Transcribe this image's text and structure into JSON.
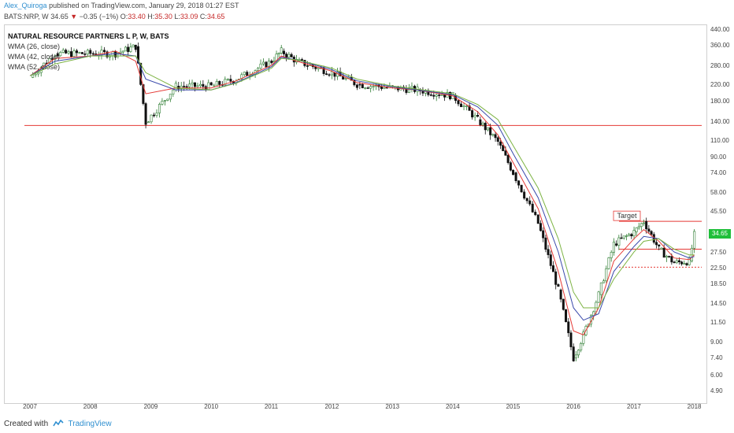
{
  "header": {
    "author": "Alex_Quiroga",
    "published_text": "published on TradingView.com, January 29, 2018 01:27 EST"
  },
  "quote": {
    "symbol": "BATS:NRP, W",
    "last": "34.65",
    "change": "−0.35 (−1%)",
    "open_label": "O:",
    "open": "33.40",
    "high_label": "H:",
    "high": "35.30",
    "low_label": "L:",
    "low": "33.09",
    "close_label": "C:",
    "close": "34.65",
    "down_arrow": "▼"
  },
  "legend": {
    "title": "NATURAL RESOURCE PARTNERS L P, W, BATS",
    "items": [
      "WMA (26, close)",
      "WMA (42, close)",
      "WMA (52, close)"
    ]
  },
  "price_tag": "34.65",
  "annotation": {
    "target_label": "Target"
  },
  "colors": {
    "up_candle": "#2e7d32",
    "down_candle": "#111111",
    "wma26": "#e53935",
    "wma42": "#3949ab",
    "wma52": "#7cb342",
    "hline": "#e53935",
    "price_tag": "#1fbf3a",
    "author": "#2f8fd0"
  },
  "chart_data": {
    "type": "line",
    "title": "NATURAL RESOURCE PARTNERS L P, W, BATS",
    "scale": "log",
    "x": [
      "2007-01",
      "2007-06",
      "2008-01",
      "2008-06",
      "2008-10",
      "2008-12",
      "2009-06",
      "2010-01",
      "2010-06",
      "2011-01",
      "2011-03",
      "2011-06",
      "2012-01",
      "2012-06",
      "2013-01",
      "2013-06",
      "2014-01",
      "2014-06",
      "2014-10",
      "2015-01",
      "2015-06",
      "2015-10",
      "2016-01",
      "2016-03",
      "2016-06",
      "2016-09",
      "2017-01",
      "2017-03",
      "2017-06",
      "2017-09",
      "2017-12",
      "2018-01"
    ],
    "series": [
      {
        "name": "BATS:NRP, W",
        "values": [
          245,
          330,
          330,
          330,
          360,
          140,
          220,
          220,
          240,
          300,
          340,
          300,
          260,
          225,
          215,
          210,
          195,
          145,
          110,
          75,
          40,
          17.5,
          7.5,
          10,
          16.5,
          31,
          36,
          41,
          29,
          24.5,
          25,
          34.65
        ]
      },
      {
        "name": "WMA (26, close)",
        "values": [
          250,
          310,
          320,
          340,
          300,
          200,
          215,
          215,
          235,
          285,
          320,
          300,
          265,
          230,
          215,
          210,
          195,
          160,
          120,
          85,
          48,
          22,
          10.5,
          10,
          14,
          25,
          33,
          37,
          32,
          26,
          25.5,
          27
        ]
      },
      {
        "name": "WMA (42, close)",
        "values": [
          250,
          300,
          320,
          330,
          320,
          240,
          210,
          210,
          230,
          280,
          315,
          305,
          270,
          235,
          218,
          210,
          198,
          170,
          135,
          95,
          55,
          28,
          14,
          12,
          13,
          22,
          30,
          34,
          33,
          28,
          26,
          26.5
        ]
      },
      {
        "name": "WMA (52, close)",
        "values": [
          250,
          290,
          320,
          320,
          320,
          260,
          215,
          210,
          228,
          275,
          310,
          305,
          275,
          240,
          220,
          212,
          200,
          175,
          145,
          105,
          62,
          33,
          17,
          14,
          14,
          20,
          28,
          32,
          33,
          29,
          27,
          27
        ]
      }
    ],
    "hlines": [
      {
        "value": 135,
        "style": "solid"
      },
      {
        "value": 41,
        "style": "solid"
      },
      {
        "value": 29,
        "style": "solid"
      },
      {
        "value": 23.2,
        "style": "dotted"
      }
    ],
    "y_ticks": [
      "440.00",
      "360.00",
      "280.00",
      "220.00",
      "180.00",
      "140.00",
      "110.00",
      "90.00",
      "74.00",
      "58.00",
      "45.50",
      "34.65",
      "27.50",
      "22.50",
      "18.50",
      "14.50",
      "11.50",
      "9.00",
      "7.40",
      "6.00",
      "4.90"
    ],
    "y_tick_values": [
      440,
      360,
      280,
      220,
      180,
      140,
      110,
      90,
      74,
      58,
      45.5,
      34.65,
      27.5,
      22.5,
      18.5,
      14.5,
      11.5,
      9,
      7.4,
      6,
      4.9
    ],
    "x_ticks": [
      "2007",
      "2008",
      "2009",
      "2010",
      "2011",
      "2012",
      "2013",
      "2014",
      "2015",
      "2016",
      "2017",
      "2018"
    ],
    "ylim": [
      4.5,
      460
    ],
    "grid": false,
    "legend": "top-left"
  },
  "footer": {
    "created_with": "Created with",
    "brand": "TradingView"
  }
}
